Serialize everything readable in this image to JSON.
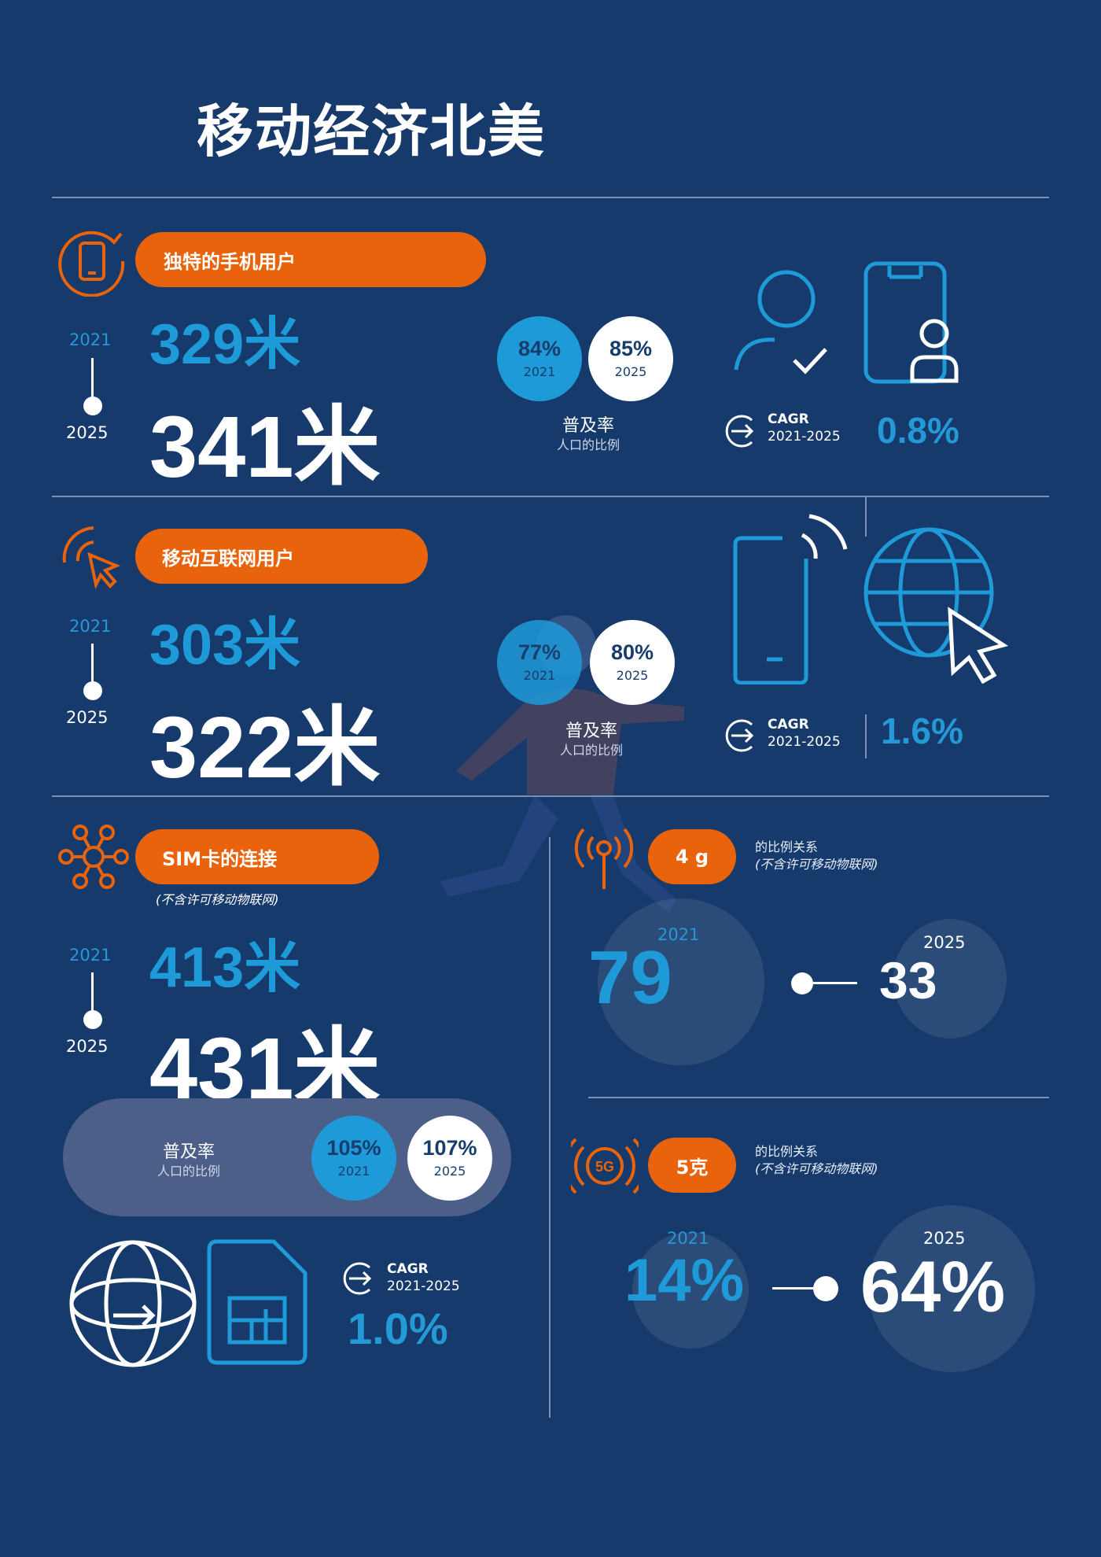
{
  "title": "移动经济北美",
  "colors": {
    "background": "#163a6b",
    "accent_orange": "#e8630b",
    "accent_blue": "#1f9ad8",
    "divider": "#7d90b4"
  },
  "section1": {
    "label": "独特的手机用户",
    "year_start": "2021",
    "year_end": "2025",
    "value_2021": "329米",
    "value_2025": "341米",
    "pen_2021": {
      "pct": "84%",
      "year": "2021"
    },
    "pen_2025": {
      "pct": "85%",
      "year": "2025"
    },
    "pen_title": "普及率",
    "pen_sub": "人口的比例",
    "cagr_label": "CAGR",
    "cagr_range": "2021-2025",
    "cagr_value": "0.8%"
  },
  "section2": {
    "label": "移动互联网用户",
    "year_start": "2021",
    "year_end": "2025",
    "value_2021": "303米",
    "value_2025": "322米",
    "pen_2021": {
      "pct": "77%",
      "year": "2021"
    },
    "pen_2025": {
      "pct": "80%",
      "year": "2025"
    },
    "pen_title": "普及率",
    "pen_sub": "人口的比例",
    "cagr_label": "CAGR",
    "cagr_range": "2021-2025",
    "cagr_value": "1.6%"
  },
  "section3": {
    "label": "SIM卡的连接",
    "note": "(不含许可移动物联网)",
    "year_start": "2021",
    "year_end": "2025",
    "value_2021": "413米",
    "value_2025": "431米",
    "pen_title": "普及率",
    "pen_sub": "人口的比例",
    "pen_2021": {
      "pct": "105%",
      "year": "2021"
    },
    "pen_2025": {
      "pct": "107%",
      "year": "2025"
    },
    "cagr_label": "CAGR",
    "cagr_range": "2021-2025",
    "cagr_value": "1.0%"
  },
  "section4g": {
    "label": "4 g",
    "note_line1": "的比例关系",
    "note_line2": "(不含许可移动物联网)",
    "year_2021": "2021",
    "year_2025": "2025",
    "value_2021": "79",
    "value_2025": "33"
  },
  "section5g": {
    "label": "5克",
    "icon_text": "5G",
    "note_line1": "的比例关系",
    "note_line2": "(不含许可移动物联网)",
    "year_2021": "2021",
    "year_2025": "2025",
    "value_2021": "14%",
    "value_2025": "64%"
  }
}
